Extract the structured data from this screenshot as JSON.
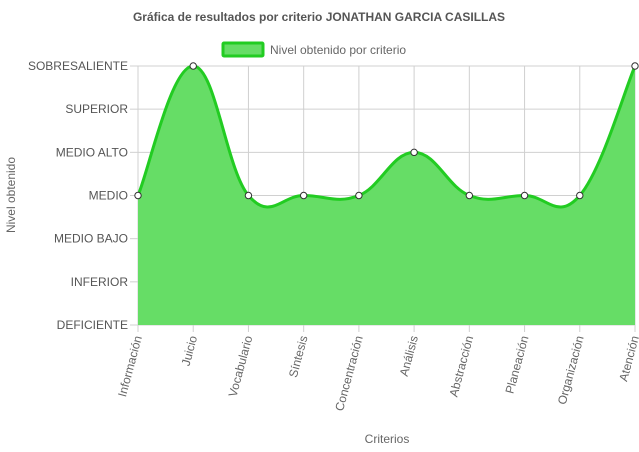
{
  "chart_data": {
    "type": "area",
    "title": "Gráfica de resultados por criterio JONATHAN GARCIA CASILLAS",
    "xlabel": "Criterios",
    "ylabel": "Nivel obtenido",
    "y_levels": [
      "DEFICIENTE",
      "INFERIOR",
      "MEDIO BAJO",
      "MEDIO",
      "MEDIO ALTO",
      "SUPERIOR",
      "SOBRESALIENTE"
    ],
    "ylim": [
      0,
      6
    ],
    "categories": [
      "Información",
      "Juicio",
      "Vocabulario",
      "Síntesis",
      "Concentración",
      "Análisis",
      "Abstracción",
      "Planeación",
      "Organización",
      "Atención"
    ],
    "series": [
      {
        "name": "Nivel obtenido por criterio",
        "values": [
          3,
          6,
          3,
          3,
          3,
          4,
          3,
          3,
          3,
          6
        ]
      }
    ],
    "grid": true,
    "legend_position": "top",
    "colors": {
      "fill": "#66dd66",
      "stroke": "#22cc22",
      "point_fill": "#ffffff",
      "point_stroke": "#333333",
      "grid": "#d0d0d0"
    }
  }
}
